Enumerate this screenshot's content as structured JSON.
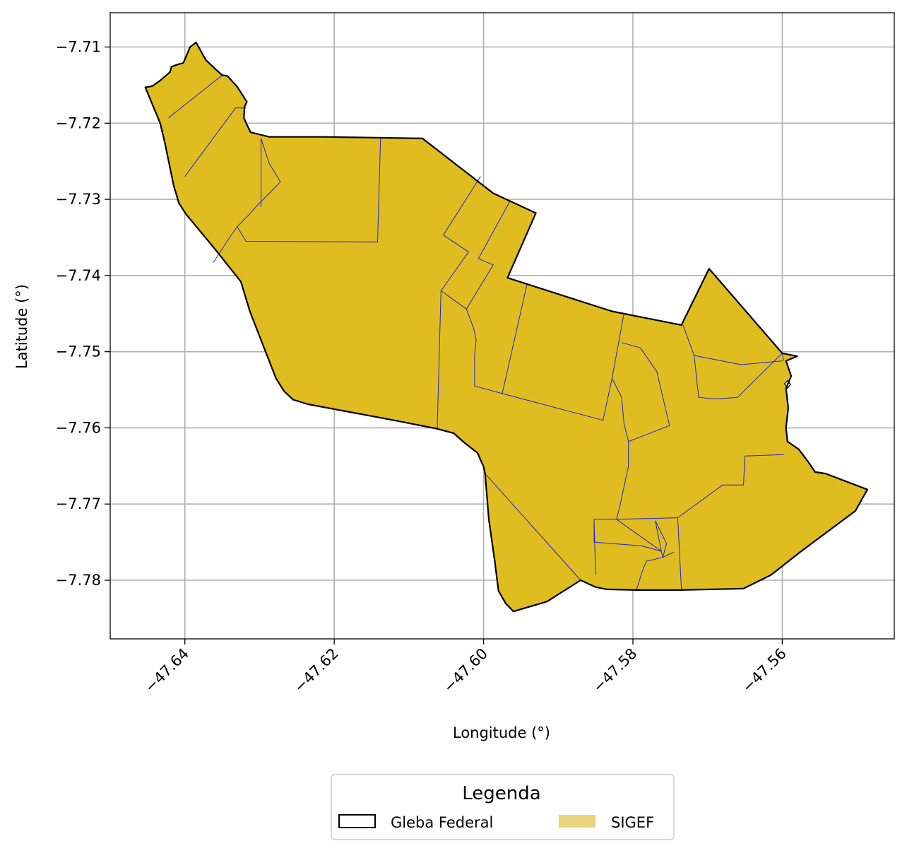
{
  "chart_data": {
    "type": "map",
    "xlabel": "Longitude (°)",
    "ylabel": "Latitude (°)",
    "xlim": [
      -47.65,
      -47.545
    ],
    "ylim": [
      -7.7877,
      -7.7055
    ],
    "xticks": [
      {
        "value": -47.64,
        "label": "−47.64"
      },
      {
        "value": -47.62,
        "label": "−47.62"
      },
      {
        "value": -47.6,
        "label": "−47.60"
      },
      {
        "value": -47.58,
        "label": "−47.58"
      },
      {
        "value": -47.56,
        "label": "−47.56"
      }
    ],
    "yticks": [
      {
        "value": -7.71,
        "label": "−7.71"
      },
      {
        "value": -7.72,
        "label": "−7.72"
      },
      {
        "value": -7.73,
        "label": "−7.73"
      },
      {
        "value": -7.74,
        "label": "−7.74"
      },
      {
        "value": -7.75,
        "label": "−7.75"
      },
      {
        "value": -7.76,
        "label": "−7.76"
      },
      {
        "value": -7.77,
        "label": "−7.77"
      },
      {
        "value": -7.78,
        "label": "−7.78"
      }
    ],
    "grid": true,
    "legend": {
      "title": "Legenda",
      "placement": "bottom-center",
      "entries": [
        {
          "label": "Gleba Federal",
          "style": "outline",
          "color": "#000000"
        },
        {
          "label": "SIGEF",
          "style": "fill",
          "color": "#e8d47a"
        }
      ]
    },
    "colors": {
      "fill": "#dfbd20",
      "boundary": "#000000",
      "parcel_lines": "#2222cc",
      "grid": "#b0b0b0"
    },
    "gleba_boundary": [
      [
        -47.6453,
        -7.7153
      ],
      [
        -47.6447,
        -7.7152
      ],
      [
        -47.6443,
        -7.7151
      ],
      [
        -47.6433,
        -7.7144
      ],
      [
        -47.642,
        -7.7133
      ],
      [
        -47.6418,
        -7.7126
      ],
      [
        -47.641,
        -7.7123
      ],
      [
        -47.6402,
        -7.7121
      ],
      [
        -47.6393,
        -7.71
      ],
      [
        -47.6385,
        -7.7094
      ],
      [
        -47.6372,
        -7.7117
      ],
      [
        -47.6358,
        -7.713
      ],
      [
        -47.635,
        -7.7137
      ],
      [
        -47.6343,
        -7.7138
      ],
      [
        -47.633,
        -7.7152
      ],
      [
        -47.6317,
        -7.7172
      ],
      [
        -47.632,
        -7.7178
      ],
      [
        -47.6321,
        -7.7193
      ],
      [
        -47.6317,
        -7.7202
      ],
      [
        -47.6312,
        -7.7212
      ],
      [
        -47.6287,
        -7.7218
      ],
      [
        -47.6215,
        -7.7218
      ],
      [
        -47.6082,
        -7.722
      ],
      [
        -47.5987,
        -7.7292
      ],
      [
        -47.593,
        -7.7318
      ],
      [
        -47.5968,
        -7.7403
      ],
      [
        -47.5828,
        -7.7447
      ],
      [
        -47.5735,
        -7.7465
      ],
      [
        -47.5698,
        -7.7391
      ],
      [
        -47.56,
        -7.7502
      ],
      [
        -47.558,
        -7.7506
      ],
      [
        -47.5595,
        -7.7512
      ],
      [
        -47.5588,
        -7.7532
      ],
      [
        -47.5595,
        -7.7548
      ],
      [
        -47.5592,
        -7.7574
      ],
      [
        -47.5595,
        -7.76
      ],
      [
        -47.5593,
        -7.7618
      ],
      [
        -47.5578,
        -7.7628
      ],
      [
        -47.5565,
        -7.7645
      ],
      [
        -47.5556,
        -7.7658
      ],
      [
        -47.5542,
        -7.766
      ],
      [
        -47.5486,
        -7.7681
      ],
      [
        -47.5502,
        -7.7709
      ],
      [
        -47.5576,
        -7.7763
      ],
      [
        -47.5615,
        -7.7793
      ],
      [
        -47.5652,
        -7.7811
      ],
      [
        -47.5742,
        -7.7813
      ],
      [
        -47.579,
        -7.7813
      ],
      [
        -47.5835,
        -7.7812
      ],
      [
        -47.585,
        -7.7809
      ],
      [
        -47.587,
        -7.78
      ],
      [
        -47.5915,
        -7.7828
      ],
      [
        -47.596,
        -7.7841
      ],
      [
        -47.597,
        -7.7831
      ],
      [
        -47.598,
        -7.7814
      ],
      [
        -47.5985,
        -7.7775
      ],
      [
        -47.5993,
        -7.772
      ],
      [
        -47.5998,
        -7.766
      ],
      [
        -47.6,
        -7.7651
      ],
      [
        -47.6008,
        -7.7633
      ],
      [
        -47.6025,
        -7.762
      ],
      [
        -47.604,
        -7.7607
      ],
      [
        -47.6063,
        -7.7601
      ],
      [
        -47.6115,
        -7.7591
      ],
      [
        -47.6235,
        -7.7569
      ],
      [
        -47.6255,
        -7.7563
      ],
      [
        -47.6267,
        -7.7552
      ],
      [
        -47.6278,
        -7.7535
      ],
      [
        -47.6313,
        -7.7447
      ],
      [
        -47.6325,
        -7.7408
      ],
      [
        -47.636,
        -7.7365
      ],
      [
        -47.6398,
        -7.732
      ],
      [
        -47.6408,
        -7.7305
      ],
      [
        -47.6415,
        -7.7282
      ],
      [
        -47.6427,
        -7.7225
      ],
      [
        -47.6433,
        -7.72
      ],
      [
        -47.6453,
        -7.7153
      ]
    ],
    "parcel_lines": [
      [
        [
          -47.6422,
          -7.7193
        ],
        [
          -47.635,
          -7.7137
        ]
      ],
      [
        [
          -47.64,
          -7.727
        ],
        [
          -47.6332,
          -7.718
        ],
        [
          -47.6318,
          -7.718
        ]
      ],
      [
        [
          -47.6362,
          -7.7383
        ],
        [
          -47.634,
          -7.735
        ],
        [
          -47.633,
          -7.7336
        ],
        [
          -47.6315,
          -7.7321
        ],
        [
          -47.6305,
          -7.731
        ]
      ],
      [
        [
          -47.633,
          -7.7336
        ],
        [
          -47.6318,
          -7.7355
        ],
        [
          -47.6142,
          -7.7356
        ],
        [
          -47.6138,
          -7.722
        ]
      ],
      [
        [
          -47.6305,
          -7.731
        ],
        [
          -47.6272,
          -7.7277
        ],
        [
          -47.6287,
          -7.7253
        ],
        [
          -47.6298,
          -7.722
        ]
      ],
      [
        [
          -47.6298,
          -7.722
        ],
        [
          -47.6298,
          -7.731
        ]
      ],
      [
        [
          -47.6004,
          -7.727
        ],
        [
          -47.6054,
          -7.7347
        ],
        [
          -47.602,
          -7.7369
        ],
        [
          -47.6057,
          -7.742
        ],
        [
          -47.6062,
          -7.76
        ]
      ],
      [
        [
          -47.6057,
          -7.742
        ],
        [
          -47.6023,
          -7.7444
        ],
        [
          -47.6013,
          -7.747
        ],
        [
          -47.601,
          -7.7485
        ],
        [
          -47.6012,
          -7.7505
        ],
        [
          -47.6012,
          -7.7545
        ],
        [
          -47.5975,
          -7.7555
        ],
        [
          -47.584,
          -7.759
        ],
        [
          -47.5828,
          -7.7535
        ],
        [
          -47.5812,
          -7.745
        ]
      ],
      [
        [
          -47.5975,
          -7.7555
        ],
        [
          -47.5942,
          -7.7412
        ]
      ],
      [
        [
          -47.5965,
          -7.7303
        ],
        [
          -47.6007,
          -7.7378
        ],
        [
          -47.5987,
          -7.7386
        ],
        [
          -47.6023,
          -7.7444
        ]
      ],
      [
        [
          -47.5828,
          -7.7535
        ],
        [
          -47.5815,
          -7.756
        ],
        [
          -47.5812,
          -7.7594
        ],
        [
          -47.5806,
          -7.7618
        ],
        [
          -47.5806,
          -7.765
        ],
        [
          -47.5818,
          -7.7705
        ],
        [
          -47.5822,
          -7.772
        ]
      ],
      [
        [
          -47.5806,
          -7.7618
        ],
        [
          -47.5751,
          -7.7597
        ],
        [
          -47.5768,
          -7.7526
        ],
        [
          -47.579,
          -7.7495
        ],
        [
          -47.5815,
          -7.7488
        ]
      ],
      [
        [
          -47.5733,
          -7.7465
        ],
        [
          -47.5718,
          -7.7505
        ],
        [
          -47.5655,
          -7.7517
        ],
        [
          -47.56,
          -7.7512
        ]
      ],
      [
        [
          -47.5718,
          -7.7505
        ],
        [
          -47.5712,
          -7.756
        ],
        [
          -47.569,
          -7.7562
        ],
        [
          -47.566,
          -7.756
        ],
        [
          -47.56,
          -7.7502
        ]
      ],
      [
        [
          -47.56,
          -7.7502
        ],
        [
          -47.5598,
          -7.7512
        ]
      ],
      [
        [
          -47.5598,
          -7.7635
        ],
        [
          -47.565,
          -7.7637
        ],
        [
          -47.5652,
          -7.7675
        ],
        [
          -47.568,
          -7.7675
        ],
        [
          -47.574,
          -7.7718
        ],
        [
          -47.578,
          -7.7719
        ],
        [
          -47.5822,
          -7.772
        ],
        [
          -47.5852,
          -7.772
        ],
        [
          -47.585,
          -7.7793
        ]
      ],
      [
        [
          -47.5998,
          -7.766
        ],
        [
          -47.587,
          -7.78
        ]
      ],
      [
        [
          -47.5852,
          -7.7722
        ],
        [
          -47.5852,
          -7.775
        ],
        [
          -47.5788,
          -7.7755
        ],
        [
          -47.5762,
          -7.7762
        ],
        [
          -47.577,
          -7.7722
        ]
      ],
      [
        [
          -47.574,
          -7.7718
        ],
        [
          -47.5735,
          -7.7813
        ]
      ],
      [
        [
          -47.5822,
          -7.772
        ],
        [
          -47.5762,
          -7.7762
        ],
        [
          -47.576,
          -7.777
        ],
        [
          -47.5782,
          -7.7775
        ],
        [
          -47.5788,
          -7.779
        ],
        [
          -47.5795,
          -7.7812
        ]
      ],
      [
        [
          -47.577,
          -7.7722
        ],
        [
          -47.5755,
          -7.7752
        ],
        [
          -47.576,
          -7.777
        ]
      ],
      [
        [
          -47.576,
          -7.777
        ],
        [
          -47.5745,
          -7.7763
        ]
      ]
    ],
    "holes": [
      [
        [
          -47.5597,
          -7.7542
        ],
        [
          -47.5593,
          -7.7538
        ],
        [
          -47.5589,
          -7.7543
        ],
        [
          -47.5593,
          -7.7548
        ],
        [
          -47.5597,
          -7.7542
        ]
      ]
    ]
  }
}
